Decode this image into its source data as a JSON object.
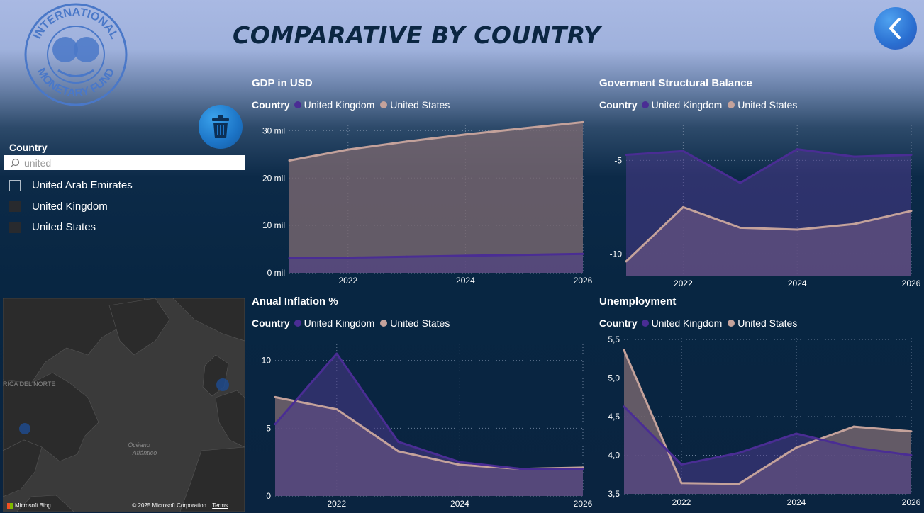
{
  "page": {
    "title": "COMPARATIVE BY COUNTRY"
  },
  "logo": {
    "text_top": "INTERNATIONAL",
    "text_bottom": "MONETARY FUND"
  },
  "slicer": {
    "title": "Country",
    "search_value": "united",
    "items": [
      {
        "label": "United Arab Emirates",
        "checked": false
      },
      {
        "label": "United Kingdom",
        "checked": true
      },
      {
        "label": "United States",
        "checked": true
      }
    ]
  },
  "map": {
    "label_region": "RICA DEL NORTE",
    "label_ocean_1": "Océano",
    "label_ocean_2": "Atlántico",
    "brand": "Microsoft Bing",
    "copyright": "© 2025 Microsoft Corporation",
    "terms": "Terms"
  },
  "colors": {
    "uk": "#4a2d94",
    "us": "#c4a29b",
    "uk_fill": "#4a3a8a",
    "us_fill": "#77666f"
  },
  "legend": {
    "title": "Country",
    "uk": "United Kingdom",
    "us": "United States"
  },
  "chart_data": [
    {
      "id": "gdp",
      "type": "area",
      "title": "GDP in USD",
      "x": [
        2021,
        2022,
        2023,
        2024,
        2025,
        2026
      ],
      "ylim": [
        0,
        32
      ],
      "yticks": [
        0,
        10,
        20,
        30
      ],
      "ytick_labels": [
        "0 mil",
        "10 mil",
        "20 mil",
        "30 mil"
      ],
      "xticks": [
        "2022",
        "2024",
        "2026"
      ],
      "series": [
        {
          "name": "United Kingdom",
          "values": [
            3.1,
            3.2,
            3.4,
            3.6,
            3.8,
            4.0
          ]
        },
        {
          "name": "United States",
          "values": [
            23.7,
            26.0,
            27.7,
            29.2,
            30.5,
            31.8
          ]
        }
      ]
    },
    {
      "id": "balance",
      "type": "area",
      "title": "Goverment Structural Balance",
      "x": [
        2021,
        2022,
        2023,
        2024,
        2025,
        2026
      ],
      "ylim": [
        -11.2,
        -2.9
      ],
      "yticks": [
        -5,
        -10
      ],
      "ytick_labels": [
        "-5",
        "-10"
      ],
      "xticks": [
        "2022",
        "2024",
        "2026"
      ],
      "series": [
        {
          "name": "United Kingdom",
          "values": [
            -4.7,
            -4.5,
            -6.2,
            -4.4,
            -4.8,
            -4.7
          ]
        },
        {
          "name": "United States",
          "values": [
            -10.4,
            -7.5,
            -8.6,
            -8.7,
            -8.4,
            -7.7
          ]
        }
      ]
    },
    {
      "id": "inflation",
      "type": "area",
      "title": "Anual Inflation %",
      "x": [
        2021,
        2022,
        2023,
        2024,
        2025,
        2026
      ],
      "ylim": [
        0,
        11.5
      ],
      "yticks": [
        0,
        5,
        10
      ],
      "ytick_labels": [
        "0",
        "5",
        "10"
      ],
      "xticks": [
        "2022",
        "2024",
        "2026"
      ],
      "series": [
        {
          "name": "United Kingdom",
          "values": [
            5.3,
            10.5,
            4.0,
            2.5,
            2.0,
            2.0
          ]
        },
        {
          "name": "United States",
          "values": [
            7.3,
            6.4,
            3.3,
            2.3,
            2.0,
            2.1
          ]
        }
      ]
    },
    {
      "id": "unemployment",
      "type": "area",
      "title": "Unemployment",
      "x": [
        2021,
        2022,
        2023,
        2024,
        2025,
        2026
      ],
      "ylim": [
        3.5,
        5.5
      ],
      "yticks": [
        3.5,
        4.0,
        4.5,
        5.0,
        5.5
      ],
      "ytick_labels": [
        "3,5",
        "4,0",
        "4,5",
        "5,0",
        "5,5"
      ],
      "xticks": [
        "2022",
        "2024",
        "2026"
      ],
      "series": [
        {
          "name": "United Kingdom",
          "values": [
            4.63,
            3.88,
            4.03,
            4.28,
            4.1,
            4.0
          ]
        },
        {
          "name": "United States",
          "values": [
            5.36,
            3.64,
            3.63,
            4.1,
            4.37,
            4.31
          ]
        }
      ]
    }
  ]
}
